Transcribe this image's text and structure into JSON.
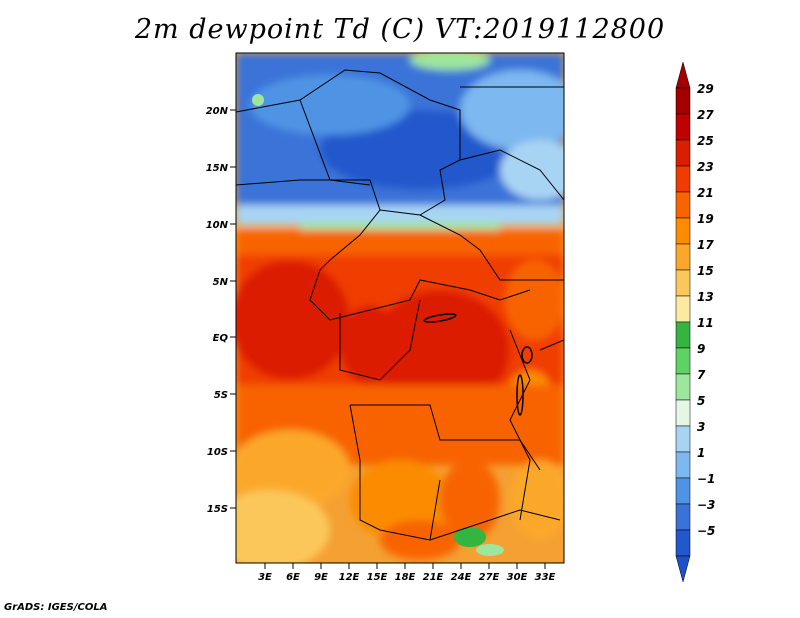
{
  "title": "2m dewpoint Td (C) VT:2019112800",
  "footer": "GrADS: IGES/COLA",
  "map": {
    "region": "Central Africa",
    "lat_labels": [
      "20N",
      "15N",
      "10N",
      "5N",
      "EQ",
      "5S",
      "10S",
      "15S"
    ],
    "lon_labels": [
      "3E",
      "6E",
      "9E",
      "12E",
      "15E",
      "18E",
      "21E",
      "24E",
      "27E",
      "30E",
      "33E"
    ],
    "field": "2m dewpoint temperature (C)"
  },
  "colorbar": {
    "levels": [
      "29",
      "27",
      "25",
      "23",
      "21",
      "19",
      "17",
      "15",
      "13",
      "11",
      "9",
      "7",
      "5",
      "3",
      "1",
      "−1",
      "−3",
      "−5"
    ],
    "colors": [
      "#a50000",
      "#c00000",
      "#dc1e00",
      "#f03c00",
      "#f86400",
      "#fb8c00",
      "#fba82a",
      "#fcc75a",
      "#fdeaa0",
      "#33b540",
      "#5fd264",
      "#9ee69e",
      "#e4f7e4",
      "#a8d4f4",
      "#7db8f0",
      "#4f94e4",
      "#3a73d8",
      "#2158cc"
    ],
    "arrow_top_color": "#a50000",
    "arrow_bottom_color": "#1e50c8"
  }
}
